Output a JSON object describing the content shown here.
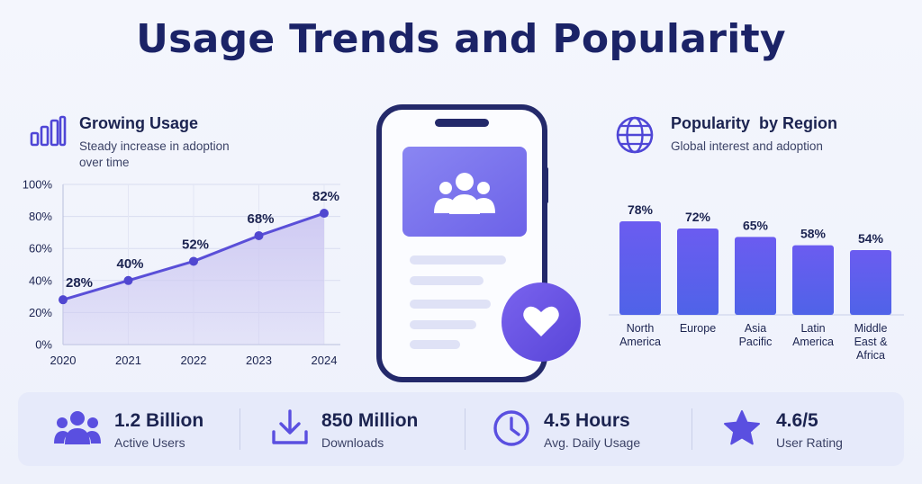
{
  "title": "Usage Trends and Popularity",
  "growing_usage": {
    "title": "Growing Usage",
    "subtitle_line1": "Steady increase in adoption",
    "subtitle_line2": "over time",
    "icon": "bar-chart-icon"
  },
  "popularity": {
    "title": "Popularity  by Region",
    "subtitle": "Global interest and adoption",
    "icon": "globe-icon"
  },
  "phone": {
    "icons": [
      "users-icon",
      "heart-icon"
    ]
  },
  "chart_data": [
    {
      "type": "area",
      "x": [
        "2020",
        "2021",
        "2022",
        "2023",
        "2024"
      ],
      "values": [
        28,
        40,
        52,
        68,
        82
      ],
      "data_labels": [
        "28%",
        "40%",
        "52%",
        "68%",
        "82%"
      ],
      "y_ticks": [
        "0%",
        "20%",
        "40%",
        "60%",
        "80%",
        "100%"
      ],
      "ylim": [
        0,
        100
      ],
      "grid": true,
      "colors": {
        "line": "#5a4fd8",
        "fill": "#cdc8f2",
        "point": "#5047d0"
      }
    },
    {
      "type": "bar",
      "categories": [
        [
          "North",
          "America"
        ],
        [
          "Europe"
        ],
        [
          "Asia",
          "Pacific"
        ],
        [
          "Latin",
          "America"
        ],
        [
          "Middle",
          "East &",
          "Africa"
        ]
      ],
      "values": [
        78,
        72,
        65,
        58,
        54
      ],
      "data_labels": [
        "78%",
        "72%",
        "65%",
        "58%",
        "54%"
      ],
      "ylim": [
        0,
        100
      ],
      "grid": false,
      "colors": {
        "top": "#6b5cf0",
        "bottom": "#4f63e8"
      }
    }
  ],
  "stats": [
    {
      "value": "1.2 Billion",
      "label": "Active Users",
      "icon": "users-icon"
    },
    {
      "value": "850 Million",
      "label": "Downloads",
      "icon": "download-icon"
    },
    {
      "value": "4.5 Hours",
      "label": "Avg. Daily Usage",
      "icon": "clock-icon"
    },
    {
      "value": "4.6/5",
      "label": "User Rating",
      "icon": "star-icon"
    }
  ],
  "colors": {
    "accent": "#5b4fe0",
    "title": "#1b2367",
    "text": "#1b2350"
  }
}
